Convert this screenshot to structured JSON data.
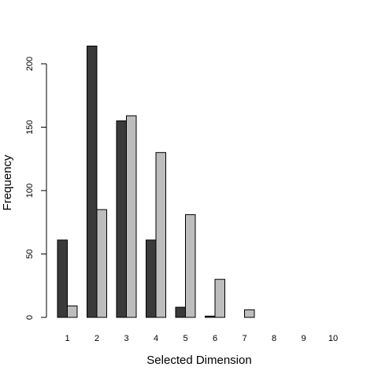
{
  "chart_data": {
    "type": "bar",
    "xlabel": "Selected Dimension",
    "ylabel": "Frequency",
    "categories": [
      "1",
      "2",
      "3",
      "4",
      "5",
      "6",
      "7",
      "8",
      "9",
      "10"
    ],
    "series": [
      {
        "color": "#3a3a3a",
        "values": [
          61,
          214,
          155,
          61,
          8,
          1,
          0,
          0,
          0,
          0
        ]
      },
      {
        "color": "#bdbdbd",
        "values": [
          9,
          85,
          159,
          130,
          81,
          30,
          6,
          0,
          0,
          0
        ]
      }
    ],
    "ylim": [
      0,
      220
    ],
    "yticks": [
      0,
      50,
      100,
      150,
      200
    ],
    "grid": false,
    "legend": "none"
  }
}
